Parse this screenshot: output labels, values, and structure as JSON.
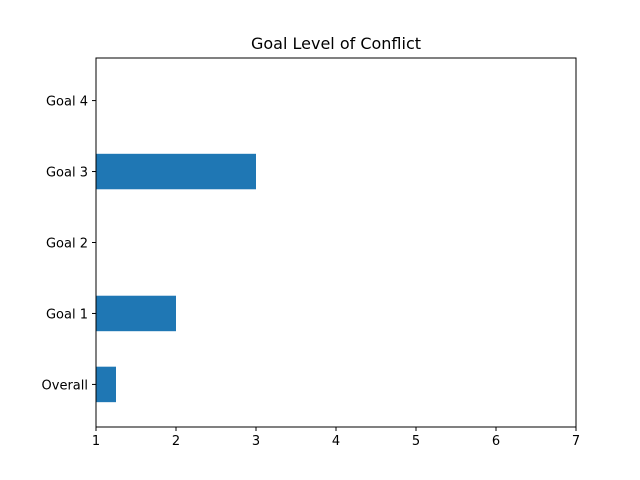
{
  "chart_data": {
    "type": "bar",
    "orientation": "horizontal",
    "title": "Goal Level of Conflict",
    "xlabel": "",
    "ylabel": "",
    "categories": [
      "Overall",
      "Goal 1",
      "Goal 2",
      "Goal 3",
      "Goal 4"
    ],
    "values": [
      1.25,
      2,
      1,
      3,
      1
    ],
    "bar_base": 1,
    "xlim": [
      1,
      7
    ],
    "xticks": [
      1,
      2,
      3,
      4,
      5,
      6,
      7
    ],
    "xtick_labels": [
      "1",
      "2",
      "3",
      "4",
      "5",
      "6",
      "7"
    ],
    "grid": false,
    "legend": "none",
    "bar_color": "#1f77b4"
  }
}
